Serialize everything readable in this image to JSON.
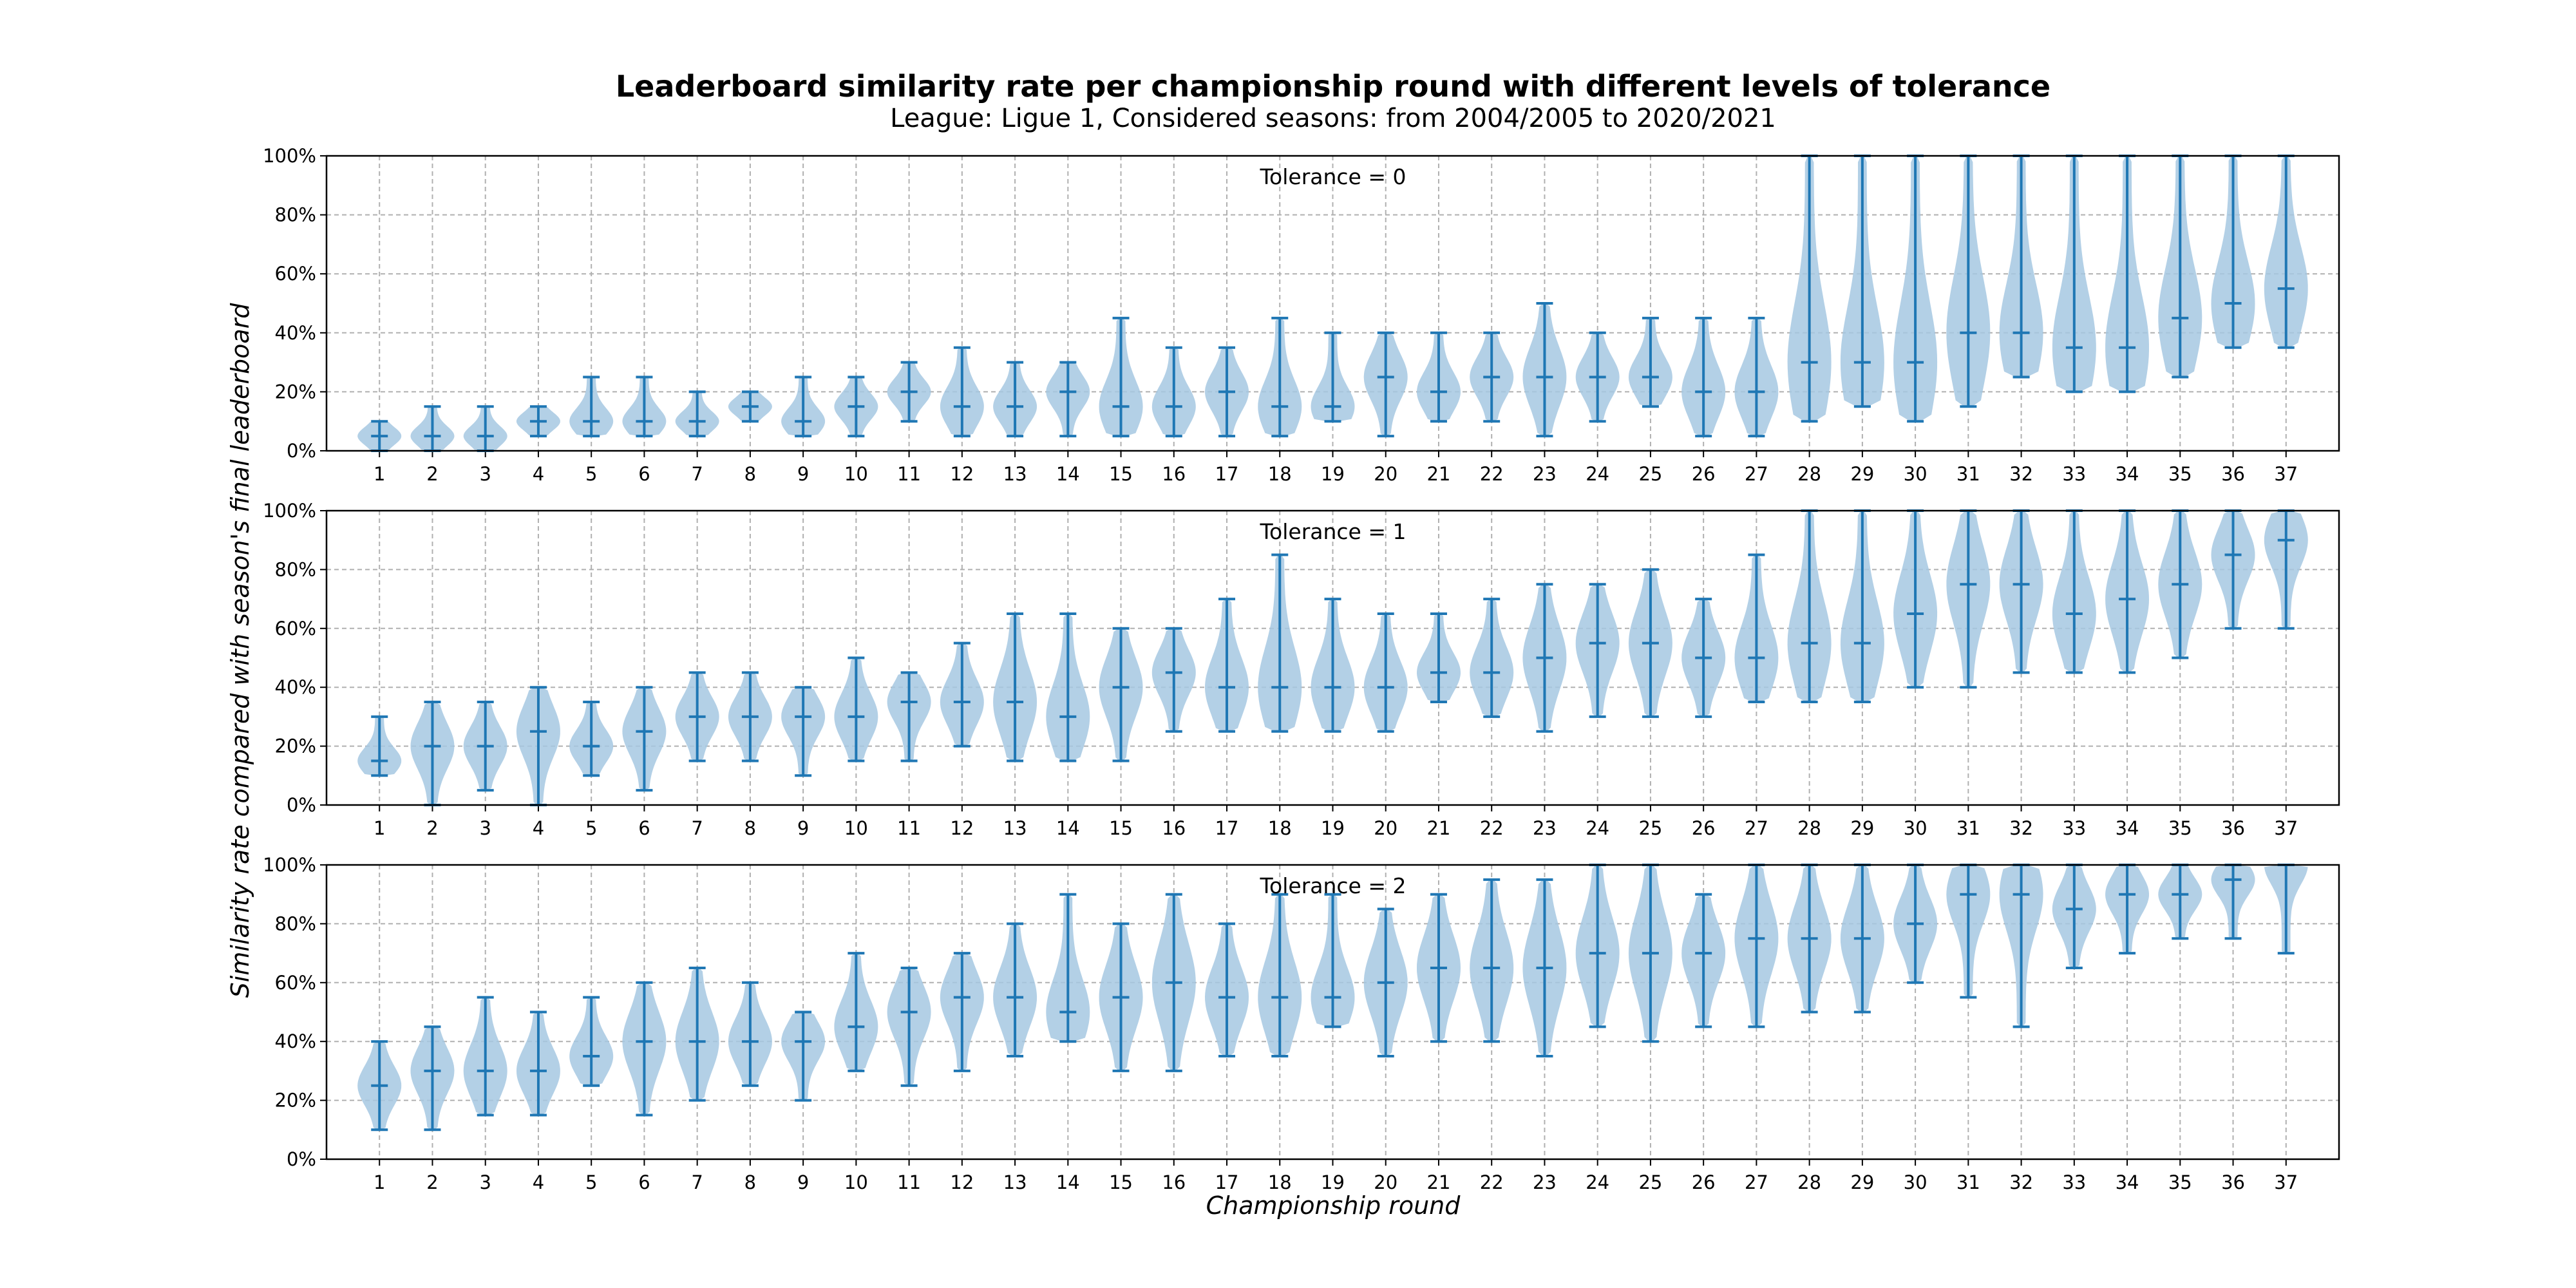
{
  "figure": {
    "title": "Leaderboard similarity rate per championship round with different levels of tolerance",
    "subtitle": "League: Ligue 1, Considered seasons: from 2004/2005 to 2020/2021",
    "xlabel": "Championship round",
    "ylabel": "Similarity rate compared with season's final leaderboard"
  },
  "colors": {
    "violin_fill": "#a6c8e2",
    "line": "#1f77b4",
    "grid": "#b0b0b0"
  },
  "chart_data": [
    {
      "type": "violin",
      "annotation": "Tolerance = 0",
      "categories": [
        "1",
        "2",
        "3",
        "4",
        "5",
        "6",
        "7",
        "8",
        "9",
        "10",
        "11",
        "12",
        "13",
        "14",
        "15",
        "16",
        "17",
        "18",
        "19",
        "20",
        "21",
        "22",
        "23",
        "24",
        "25",
        "26",
        "27",
        "28",
        "29",
        "30",
        "31",
        "32",
        "33",
        "34",
        "35",
        "36",
        "37"
      ],
      "y_ticks": [
        "0%",
        "20%",
        "40%",
        "60%",
        "80%",
        "100%"
      ],
      "ylim": [
        0,
        100
      ],
      "grid": true,
      "min": [
        0,
        0,
        0,
        5,
        5,
        5,
        5,
        10,
        5,
        5,
        10,
        5,
        5,
        5,
        5,
        5,
        5,
        5,
        10,
        5,
        10,
        10,
        5,
        10,
        15,
        5,
        5,
        10,
        15,
        10,
        15,
        25,
        20,
        20,
        25,
        35,
        35
      ],
      "median": [
        5,
        5,
        5,
        10,
        10,
        10,
        10,
        15,
        10,
        15,
        20,
        15,
        15,
        20,
        15,
        15,
        20,
        15,
        15,
        25,
        20,
        25,
        25,
        25,
        25,
        20,
        20,
        30,
        30,
        30,
        40,
        40,
        35,
        35,
        45,
        50,
        55
      ],
      "max": [
        10,
        15,
        15,
        15,
        25,
        25,
        20,
        20,
        25,
        25,
        30,
        35,
        30,
        30,
        45,
        35,
        35,
        45,
        40,
        40,
        40,
        40,
        50,
        40,
        45,
        45,
        45,
        100,
        100,
        100,
        100,
        100,
        100,
        100,
        100,
        100,
        100
      ]
    },
    {
      "type": "violin",
      "annotation": "Tolerance = 1",
      "categories": [
        "1",
        "2",
        "3",
        "4",
        "5",
        "6",
        "7",
        "8",
        "9",
        "10",
        "11",
        "12",
        "13",
        "14",
        "15",
        "16",
        "17",
        "18",
        "19",
        "20",
        "21",
        "22",
        "23",
        "24",
        "25",
        "26",
        "27",
        "28",
        "29",
        "30",
        "31",
        "32",
        "33",
        "34",
        "35",
        "36",
        "37"
      ],
      "y_ticks": [
        "0%",
        "20%",
        "40%",
        "60%",
        "80%",
        "100%"
      ],
      "ylim": [
        0,
        100
      ],
      "grid": true,
      "min": [
        10,
        0,
        5,
        0,
        10,
        5,
        15,
        15,
        10,
        15,
        15,
        20,
        15,
        15,
        15,
        25,
        25,
        25,
        25,
        25,
        35,
        30,
        25,
        30,
        30,
        30,
        35,
        35,
        35,
        40,
        40,
        45,
        45,
        45,
        50,
        60,
        60
      ],
      "median": [
        15,
        20,
        20,
        25,
        20,
        25,
        30,
        30,
        30,
        30,
        35,
        35,
        35,
        30,
        40,
        45,
        40,
        40,
        40,
        40,
        45,
        45,
        50,
        55,
        55,
        50,
        50,
        55,
        55,
        65,
        75,
        75,
        65,
        70,
        75,
        85,
        90
      ],
      "max": [
        30,
        35,
        35,
        40,
        35,
        40,
        45,
        45,
        40,
        50,
        45,
        55,
        65,
        65,
        60,
        60,
        70,
        85,
        70,
        65,
        65,
        70,
        75,
        75,
        80,
        70,
        85,
        100,
        100,
        100,
        100,
        100,
        100,
        100,
        100,
        100,
        100
      ]
    },
    {
      "type": "violin",
      "annotation": "Tolerance = 2",
      "categories": [
        "1",
        "2",
        "3",
        "4",
        "5",
        "6",
        "7",
        "8",
        "9",
        "10",
        "11",
        "12",
        "13",
        "14",
        "15",
        "16",
        "17",
        "18",
        "19",
        "20",
        "21",
        "22",
        "23",
        "24",
        "25",
        "26",
        "27",
        "28",
        "29",
        "30",
        "31",
        "32",
        "33",
        "34",
        "35",
        "36",
        "37"
      ],
      "y_ticks": [
        "0%",
        "20%",
        "40%",
        "60%",
        "80%",
        "100%"
      ],
      "ylim": [
        0,
        100
      ],
      "grid": true,
      "min": [
        10,
        10,
        15,
        15,
        25,
        15,
        20,
        25,
        20,
        30,
        25,
        30,
        35,
        40,
        30,
        30,
        35,
        35,
        45,
        35,
        40,
        40,
        35,
        45,
        40,
        45,
        45,
        50,
        50,
        60,
        55,
        45,
        65,
        70,
        75,
        75,
        70
      ],
      "median": [
        25,
        30,
        30,
        30,
        35,
        40,
        40,
        40,
        40,
        45,
        50,
        55,
        55,
        50,
        55,
        60,
        55,
        55,
        55,
        60,
        65,
        65,
        65,
        70,
        70,
        70,
        75,
        75,
        75,
        80,
        90,
        90,
        85,
        90,
        90,
        95,
        100
      ],
      "max": [
        40,
        45,
        55,
        50,
        55,
        60,
        65,
        60,
        50,
        70,
        65,
        70,
        80,
        90,
        80,
        90,
        80,
        90,
        90,
        85,
        90,
        95,
        95,
        100,
        100,
        90,
        100,
        100,
        100,
        100,
        100,
        100,
        100,
        100,
        100,
        100,
        100
      ]
    }
  ]
}
